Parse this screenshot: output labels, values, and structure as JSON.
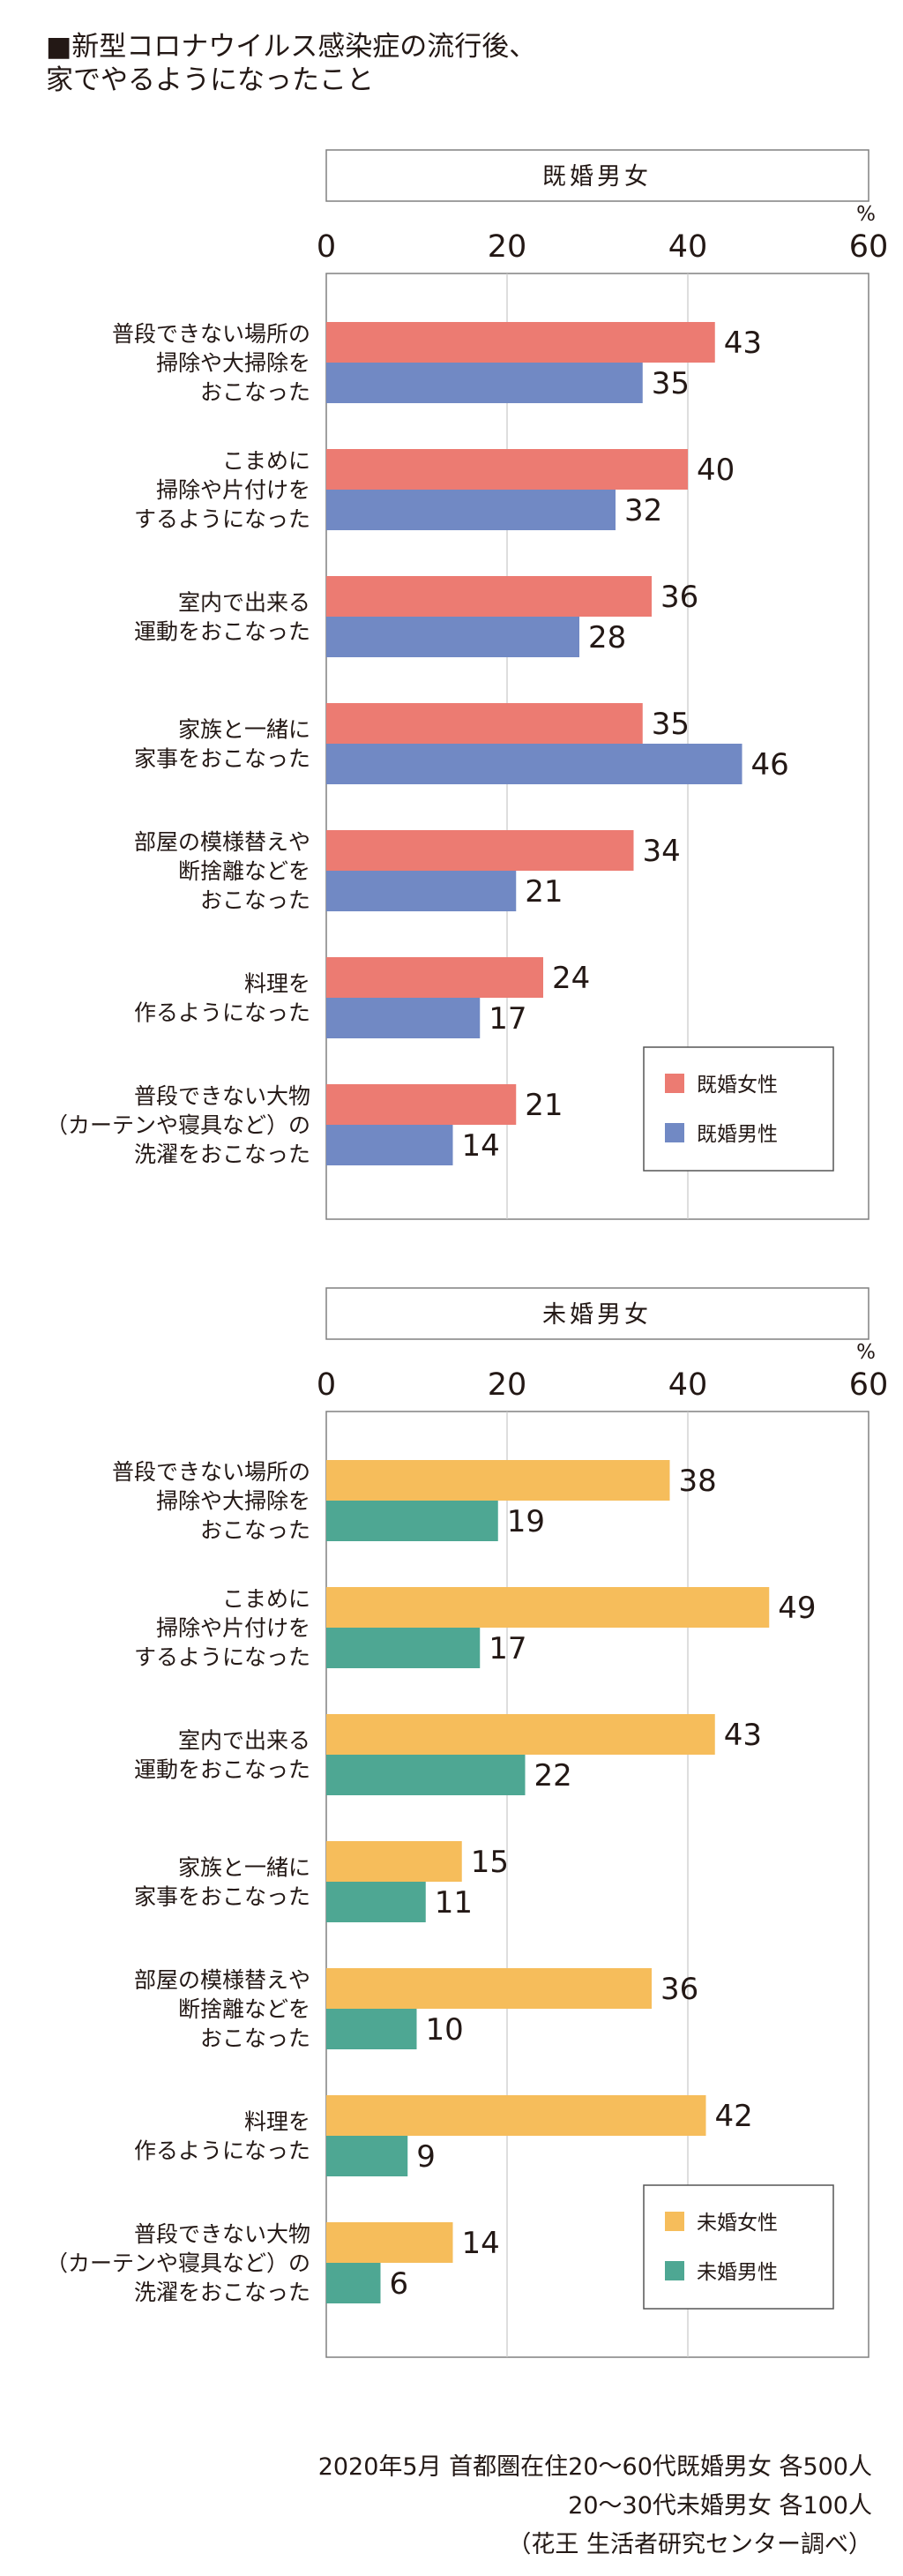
{
  "title": {
    "line1": "■新型コロナウイルス感染症の流行後、",
    "line2": "家でやるようになったこと"
  },
  "chart_data": [
    {
      "type": "bar",
      "title": "既婚男女",
      "unit": "%",
      "xlim": [
        0,
        60
      ],
      "ticks": [
        0,
        20,
        40,
        60
      ],
      "grid": true,
      "legend_position": "bottom-right",
      "categories": [
        [
          "普段できない場所の",
          "掃除や大掃除を",
          "おこなった"
        ],
        [
          "こまめに",
          "掃除や片付けを",
          "するようになった"
        ],
        [
          "室内で出来る",
          "運動をおこなった"
        ],
        [
          "家族と一緒に",
          "家事をおこなった"
        ],
        [
          "部屋の模様替えや",
          "断捨離などを",
          "おこなった"
        ],
        [
          "料理を",
          "作るようになった"
        ],
        [
          "普段できない大物",
          "（カーテンや寝具など）の",
          "洗濯をおこなった"
        ]
      ],
      "series": [
        {
          "name": "既婚女性",
          "color": "#ec7b72",
          "values": [
            43,
            40,
            36,
            35,
            34,
            24,
            21
          ]
        },
        {
          "name": "既婚男性",
          "color": "#7189c4",
          "values": [
            35,
            32,
            28,
            46,
            21,
            17,
            14
          ]
        }
      ]
    },
    {
      "type": "bar",
      "title": "未婚男女",
      "unit": "%",
      "xlim": [
        0,
        60
      ],
      "ticks": [
        0,
        20,
        40,
        60
      ],
      "grid": true,
      "legend_position": "bottom-right",
      "categories": [
        [
          "普段できない場所の",
          "掃除や大掃除を",
          "おこなった"
        ],
        [
          "こまめに",
          "掃除や片付けを",
          "するようになった"
        ],
        [
          "室内で出来る",
          "運動をおこなった"
        ],
        [
          "家族と一緒に",
          "家事をおこなった"
        ],
        [
          "部屋の模様替えや",
          "断捨離などを",
          "おこなった"
        ],
        [
          "料理を",
          "作るようになった"
        ],
        [
          "普段できない大物",
          "（カーテンや寝具など）の",
          "洗濯をおこなった"
        ]
      ],
      "series": [
        {
          "name": "未婚女性",
          "color": "#f6bd5b",
          "values": [
            38,
            49,
            43,
            15,
            36,
            42,
            14
          ]
        },
        {
          "name": "未婚男性",
          "color": "#4ea793",
          "values": [
            19,
            17,
            22,
            11,
            10,
            9,
            6
          ]
        }
      ]
    }
  ],
  "note": {
    "line1": "2020年5月 首都圏在住20～60代既婚男女 各500人",
    "line2": "20～30代未婚男女 各100人",
    "line3": "（花王 生活者研究センター調べ）"
  }
}
